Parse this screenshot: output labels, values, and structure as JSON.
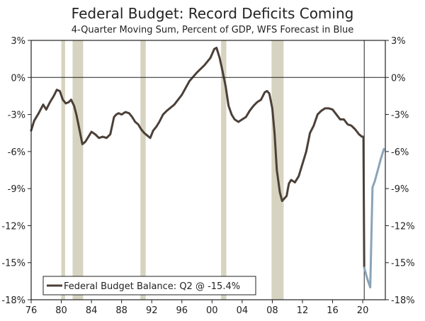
{
  "chart_data": {
    "type": "line",
    "title": "Federal Budget: Record Deficits Coming",
    "subtitle": "4-Quarter Moving Sum, Percent of GDP, WFS Forecast in Blue",
    "xlabel": "",
    "ylabel": "",
    "xlim": [
      1976,
      2023
    ],
    "ylim": [
      -18,
      3
    ],
    "x_ticks": [
      1976,
      1980,
      1984,
      1988,
      1992,
      1996,
      2000,
      2004,
      2008,
      2012,
      2016,
      2020
    ],
    "x_tick_labels": [
      "76",
      "80",
      "84",
      "88",
      "92",
      "96",
      "00",
      "04",
      "08",
      "12",
      "16",
      "20"
    ],
    "y_ticks": [
      3,
      0,
      -3,
      -6,
      -9,
      -12,
      -15,
      -18
    ],
    "y_tick_labels": [
      "3%",
      "0%",
      "-3%",
      "-6%",
      "-9%",
      "-12%",
      "-15%",
      "-18%"
    ],
    "grid": false,
    "legend": {
      "position": "bottom-left",
      "entries": [
        "Federal Budget Balance: Q2 @ -15.4%"
      ]
    },
    "colors": {
      "actual": "#4b4038",
      "forecast": "#8aa4b8",
      "recession": "#d6d3c0",
      "axis": "#222222"
    },
    "recessions": [
      [
        1980.0,
        1980.5
      ],
      [
        1981.5,
        1982.9
      ],
      [
        1990.5,
        1991.2
      ],
      [
        2001.2,
        2001.9
      ],
      [
        2007.9,
        2009.5
      ]
    ],
    "vertical_marker": 2020.2,
    "series": [
      {
        "name": "Federal Budget Balance: Q2 @ -15.4%",
        "style": "actual",
        "x": [
          1976.0,
          1976.4,
          1977.0,
          1977.6,
          1978.0,
          1978.5,
          1979.0,
          1979.4,
          1979.8,
          1980.2,
          1980.6,
          1981.0,
          1981.3,
          1981.7,
          1982.0,
          1982.4,
          1982.8,
          1983.2,
          1983.6,
          1984.0,
          1984.5,
          1985.0,
          1985.5,
          1986.0,
          1986.5,
          1987.0,
          1987.3,
          1987.6,
          1988.0,
          1988.5,
          1989.0,
          1989.4,
          1989.8,
          1990.2,
          1990.6,
          1991.0,
          1991.4,
          1991.8,
          1992.2,
          1992.6,
          1993.0,
          1993.5,
          1994.0,
          1995.0,
          1996.0,
          1997.0,
          1998.0,
          1999.0,
          1999.8,
          2000.3,
          2000.6,
          2001.0,
          2001.4,
          2001.8,
          2002.2,
          2002.6,
          2003.0,
          2003.5,
          2004.0,
          2004.5,
          2005.0,
          2005.5,
          2006.0,
          2006.5,
          2007.0,
          2007.3,
          2007.6,
          2008.0,
          2008.3,
          2008.6,
          2009.0,
          2009.3,
          2009.6,
          2009.9,
          2010.2,
          2010.5,
          2011.0,
          2011.5,
          2012.0,
          2012.5,
          2013.0,
          2013.5,
          2014.0,
          2014.5,
          2015.0,
          2015.5,
          2016.0,
          2016.5,
          2017.0,
          2017.5,
          2018.0,
          2018.5,
          2019.0,
          2019.5,
          2019.9,
          2020.1,
          2020.2
        ],
        "y": [
          -4.3,
          -3.5,
          -2.9,
          -2.2,
          -2.6,
          -2.0,
          -1.5,
          -1.0,
          -1.1,
          -1.8,
          -2.1,
          -2.0,
          -1.8,
          -2.3,
          -3.0,
          -4.2,
          -5.4,
          -5.2,
          -4.8,
          -4.4,
          -4.6,
          -4.9,
          -4.8,
          -4.9,
          -4.6,
          -3.2,
          -3.0,
          -2.9,
          -3.0,
          -2.8,
          -2.9,
          -3.2,
          -3.6,
          -3.8,
          -4.2,
          -4.5,
          -4.7,
          -4.9,
          -4.3,
          -4.0,
          -3.6,
          -3.0,
          -2.7,
          -2.2,
          -1.4,
          -0.3,
          0.4,
          1.0,
          1.6,
          2.3,
          2.4,
          1.6,
          0.5,
          -0.7,
          -2.3,
          -3.0,
          -3.4,
          -3.6,
          -3.4,
          -3.2,
          -2.7,
          -2.3,
          -2.0,
          -1.8,
          -1.2,
          -1.1,
          -1.3,
          -2.5,
          -4.5,
          -7.5,
          -9.3,
          -10.0,
          -9.8,
          -9.6,
          -8.6,
          -8.3,
          -8.5,
          -8.0,
          -7.0,
          -6.0,
          -4.5,
          -3.9,
          -3.0,
          -2.7,
          -2.5,
          -2.5,
          -2.6,
          -3.0,
          -3.4,
          -3.4,
          -3.8,
          -3.9,
          -4.2,
          -4.6,
          -4.8,
          -4.8,
          -15.4
        ]
      },
      {
        "name": "WFS Forecast",
        "style": "forecast",
        "x": [
          2020.2,
          2020.6,
          2021.0,
          2021.3,
          2021.6,
          2022.0,
          2022.4,
          2022.8
        ],
        "y": [
          -15.4,
          -16.3,
          -17.0,
          -8.9,
          -8.4,
          -7.5,
          -6.6,
          -5.8
        ]
      }
    ]
  }
}
